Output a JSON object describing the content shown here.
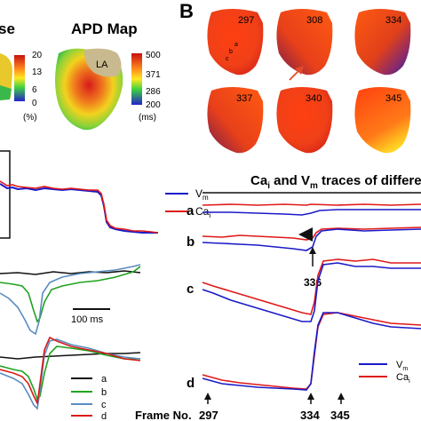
{
  "panel_left": {
    "title_partial": "se",
    "title_apd": "APD Map",
    "map_label": "LA",
    "scale_left": {
      "ticks": [
        "20",
        "13",
        "6",
        "0"
      ],
      "unit": "(%)"
    },
    "scale_right": {
      "ticks": [
        "500",
        "371",
        "286",
        "200"
      ],
      "unit": "(ms)"
    },
    "legend_top": {
      "vm": "V",
      "vm_sub": "m",
      "ca": "Ca",
      "ca_sub": "i"
    },
    "scale_bar": "100 ms",
    "legend_bottom": [
      "a",
      "b",
      "c",
      "d"
    ]
  },
  "panel_b": {
    "letter": "B",
    "maps": [
      "297",
      "308",
      "334",
      "337",
      "340",
      "345"
    ],
    "site_labels": [
      "a",
      "b",
      "c"
    ],
    "traces_title": {
      "ca": "Ca",
      "ca_sub": "i",
      "mid": " and V",
      "vm_sub": "m",
      "rest": " traces of differe"
    },
    "rows": [
      "a",
      "b",
      "c",
      "d"
    ],
    "annot_336": "336",
    "frame_label": "Frame No.",
    "frames": [
      "297",
      "334",
      "345"
    ],
    "legend": {
      "vm": "V",
      "vm_sub": "m",
      "ca": "Ca",
      "ca_sub": "i"
    }
  },
  "colors": {
    "vm": "#1a1ac8",
    "ca": "#e01818",
    "black": "#111111",
    "green": "#1fa31f",
    "steel": "#5a8cc0",
    "red_d": "#d81a1a"
  }
}
